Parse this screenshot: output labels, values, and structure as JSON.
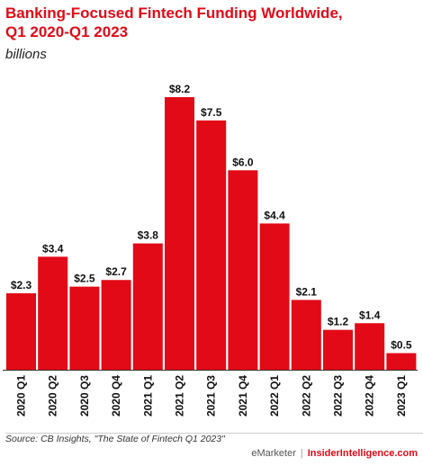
{
  "header": {
    "title_line1": "Banking-Focused Fintech Funding Worldwide,",
    "title_line2": "Q1 2020-Q1 2023",
    "subtitle": "billions"
  },
  "footer": {
    "source": "Source: CB Insights, \"The State of Fintech Q1 2023\"",
    "brand_left": "eMarketer",
    "brand_sep": "|",
    "brand_right": "InsiderIntelligence.com"
  },
  "colors": {
    "bar": "#e20a17",
    "title": "#e20a17"
  },
  "chart_data": {
    "type": "bar",
    "title": "Banking-Focused Fintech Funding Worldwide, Q1 2020-Q1 2023",
    "subtitle": "billions",
    "categories": [
      "2020 Q1",
      "2020 Q2",
      "2020 Q3",
      "2020 Q4",
      "2021 Q1",
      "2021 Q2",
      "2021 Q3",
      "2021 Q4",
      "2022 Q1",
      "2022 Q2",
      "2022 Q3",
      "2022 Q4",
      "2023 Q1"
    ],
    "values": [
      2.3,
      3.4,
      2.5,
      2.7,
      3.8,
      8.2,
      7.5,
      6.0,
      4.4,
      2.1,
      1.2,
      1.4,
      0.5
    ],
    "value_labels": [
      "$2.3",
      "$3.4",
      "$2.5",
      "$2.7",
      "$3.8",
      "$8.2",
      "$7.5",
      "$6.0",
      "$4.4",
      "$2.1",
      "$1.2",
      "$1.4",
      "$0.5"
    ],
    "ylim": [
      0,
      8.2
    ],
    "grid": false
  }
}
